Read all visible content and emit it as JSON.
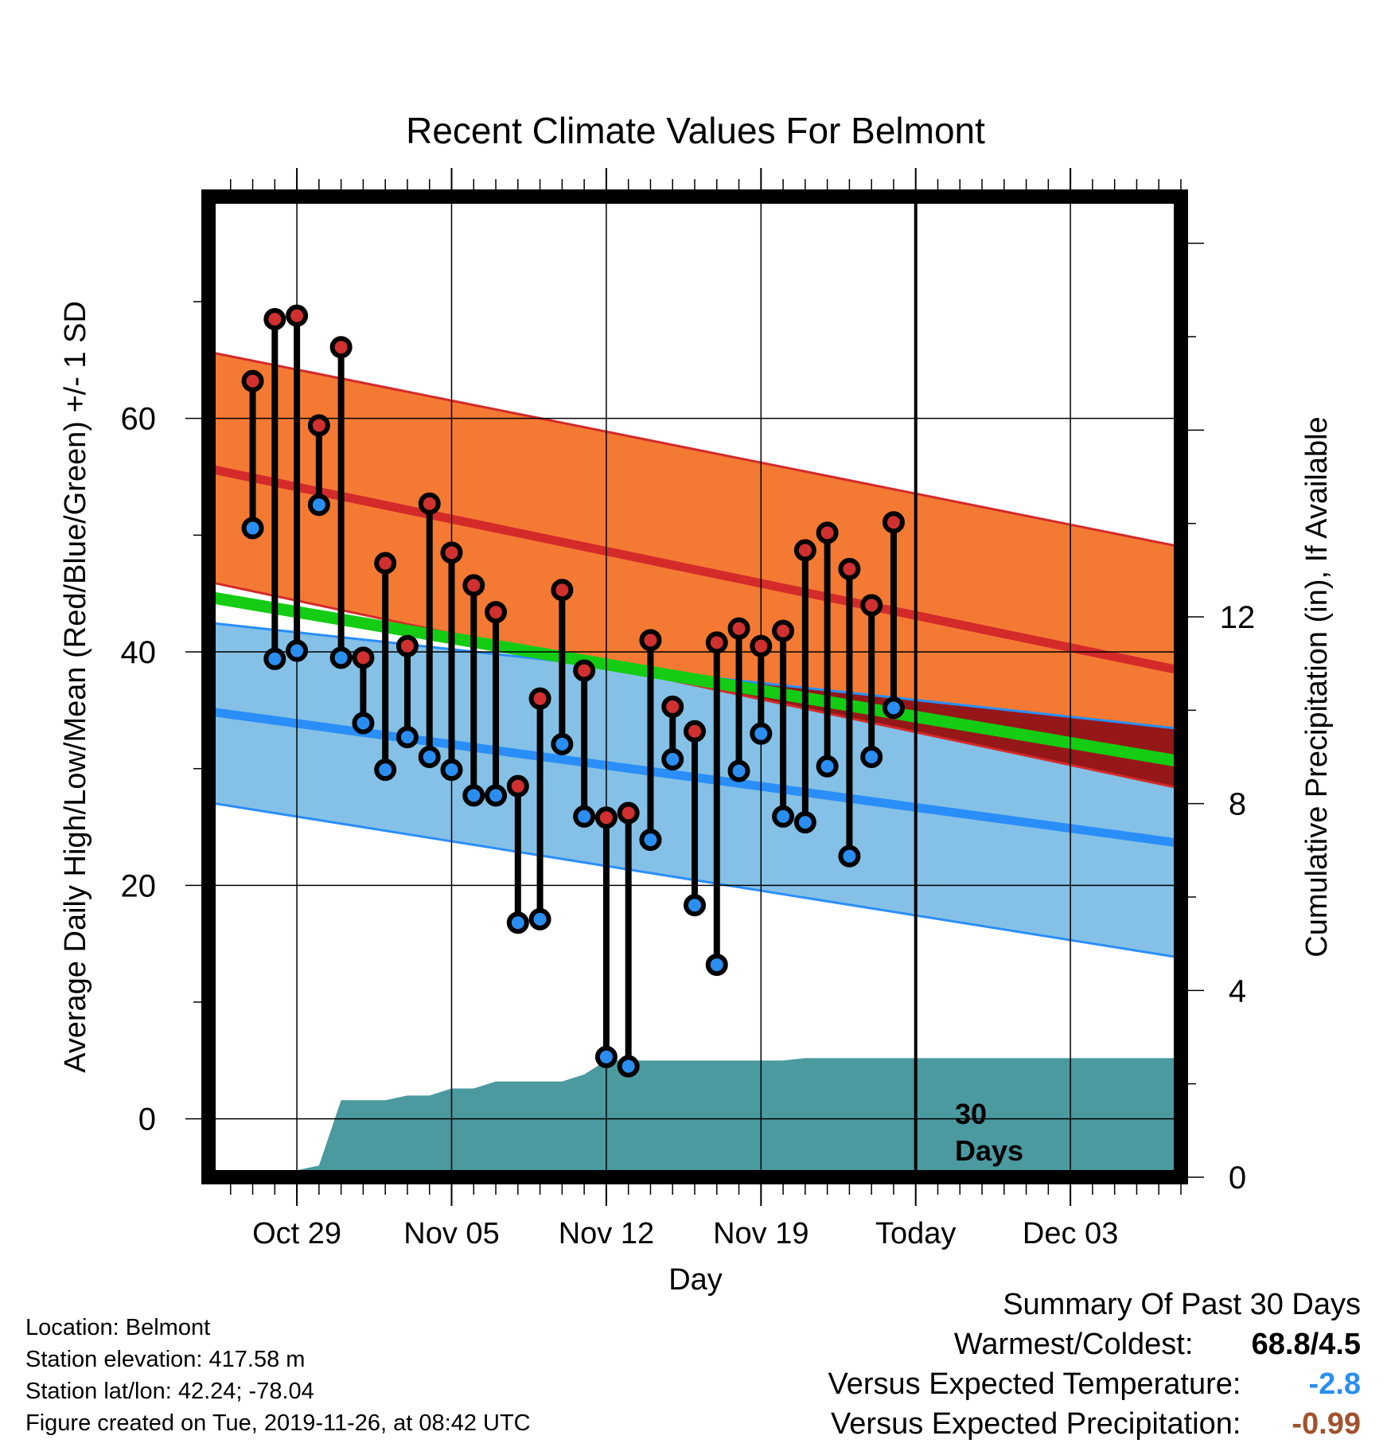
{
  "chart_data": {
    "type": "line",
    "title": "Recent Climate Values For Belmont",
    "xlabel": "Day",
    "ylabel": "Average Daily High/Low/Mean (Red/Blue/Green) +/- 1 SD",
    "y2label": "Cumulative Precipitation (in), If Available",
    "ylim": [
      -5,
      79
    ],
    "y2lim": [
      0,
      21
    ],
    "yticks": [
      "0",
      "20",
      "40",
      "60"
    ],
    "y2ticks": [
      "0",
      "4",
      "8",
      "12"
    ],
    "x_range_days": [
      "2019-10-25",
      "2019-12-08"
    ],
    "xticks": [
      {
        "date": "2019-10-29",
        "label": "Oct 29"
      },
      {
        "date": "2019-11-05",
        "label": "Nov 05"
      },
      {
        "date": "2019-11-12",
        "label": "Nov 12"
      },
      {
        "date": "2019-11-19",
        "label": "Nov 19"
      },
      {
        "date": "2019-11-26",
        "label": "Today"
      },
      {
        "date": "2019-12-03",
        "label": "Dec 03"
      }
    ],
    "today_marker": {
      "date": "2019-11-26",
      "label_line1": "30",
      "label_line2": "Days"
    },
    "normals": {
      "x": [
        "2019-10-25",
        "2019-12-08"
      ],
      "high_mean": [
        55.7,
        38.4
      ],
      "high_upper": [
        65.7,
        49.0
      ],
      "high_lower": [
        46.0,
        28.3
      ],
      "low_mean": [
        34.9,
        23.6
      ],
      "low_upper": [
        42.5,
        33.4
      ],
      "low_lower": [
        27.1,
        13.8
      ],
      "mean": [
        44.7,
        30.6
      ]
    },
    "daily": {
      "dates": [
        "2019-10-28",
        "2019-10-29",
        "2019-10-30",
        "2019-10-31",
        "2019-11-01",
        "2019-11-02",
        "2019-11-03",
        "2019-11-04",
        "2019-11-05",
        "2019-11-06",
        "2019-11-07",
        "2019-11-08",
        "2019-11-09",
        "2019-11-10",
        "2019-11-11",
        "2019-11-12",
        "2019-11-13",
        "2019-11-14",
        "2019-11-15",
        "2019-11-16",
        "2019-11-17",
        "2019-11-18",
        "2019-11-19",
        "2019-11-20",
        "2019-11-21",
        "2019-11-22",
        "2019-11-23",
        "2019-11-24",
        "2019-11-25"
      ],
      "high": [
        68.5,
        68.8,
        59.4,
        66.1,
        39.5,
        47.6,
        40.5,
        52.7,
        48.5,
        45.7,
        43.4,
        28.5,
        36.0,
        45.3,
        38.4,
        25.8,
        26.2,
        41.0,
        35.3,
        33.2,
        40.8,
        42.0,
        40.5,
        41.8,
        48.7,
        50.2,
        47.1,
        44.0,
        51.1
      ],
      "low": [
        39.4,
        40.1,
        52.6,
        39.5,
        33.9,
        29.9,
        32.7,
        31.0,
        29.9,
        27.7,
        27.7,
        16.8,
        17.1,
        32.1,
        25.9,
        5.3,
        4.5,
        23.9,
        30.8,
        18.3,
        13.2,
        29.8,
        33.0,
        25.9,
        25.4,
        30.2,
        22.5,
        31.0,
        35.2
      ]
    },
    "first_day": {
      "date": "2019-10-27",
      "high": 63.2,
      "low": 50.6
    },
    "precip": {
      "dates": [
        "2019-10-25",
        "2019-10-26",
        "2019-10-27",
        "2019-10-28",
        "2019-10-29",
        "2019-10-30",
        "2019-10-31",
        "2019-11-01",
        "2019-11-02",
        "2019-11-03",
        "2019-11-04",
        "2019-11-05",
        "2019-11-06",
        "2019-11-07",
        "2019-11-08",
        "2019-11-09",
        "2019-11-10",
        "2019-11-11",
        "2019-11-12",
        "2019-11-13",
        "2019-11-14",
        "2019-11-15",
        "2019-11-16",
        "2019-11-17",
        "2019-11-18",
        "2019-11-19",
        "2019-11-20",
        "2019-11-21",
        "2019-11-22",
        "2019-11-23",
        "2019-11-24",
        "2019-11-25",
        "2019-11-26",
        "2019-12-08"
      ],
      "cumulative": [
        0.0,
        0.1,
        0.15,
        0.15,
        0.15,
        0.25,
        1.65,
        1.65,
        1.65,
        1.75,
        1.75,
        1.9,
        1.9,
        2.05,
        2.05,
        2.05,
        2.05,
        2.2,
        2.5,
        2.5,
        2.5,
        2.5,
        2.5,
        2.5,
        2.5,
        2.5,
        2.5,
        2.55,
        2.55,
        2.55,
        2.55,
        2.55,
        2.55,
        2.55
      ]
    },
    "colors": {
      "high_band": "#f47a33",
      "high_line": "#d42a2a",
      "low_band": "#85c1e6",
      "low_line": "#2a8ef8",
      "mean_line": "#14cc14",
      "overlap": "#951717",
      "precip": "#4a9aa0",
      "high_marker": "#d03030",
      "low_marker": "#2a8ef0"
    }
  },
  "info": {
    "location": "Location: Belmont",
    "elevation": "Station elevation: 417.58 m",
    "latlon": "Station lat/lon: 42.24; -78.04",
    "created": "Figure created on Tue, 2019-11-26, at 08:42 UTC"
  },
  "summary": {
    "title": "Summary Of Past 30 Days",
    "warmest_label": "Warmest/Coldest:",
    "warmest_value": "68.8/4.5",
    "temp_label": "Versus Expected Temperature:",
    "temp_value": "-2.8",
    "temp_color": "#2a8ef0",
    "precip_label": "Versus Expected Precipitation:",
    "precip_value": "-0.99",
    "precip_color": "#a0522d"
  }
}
